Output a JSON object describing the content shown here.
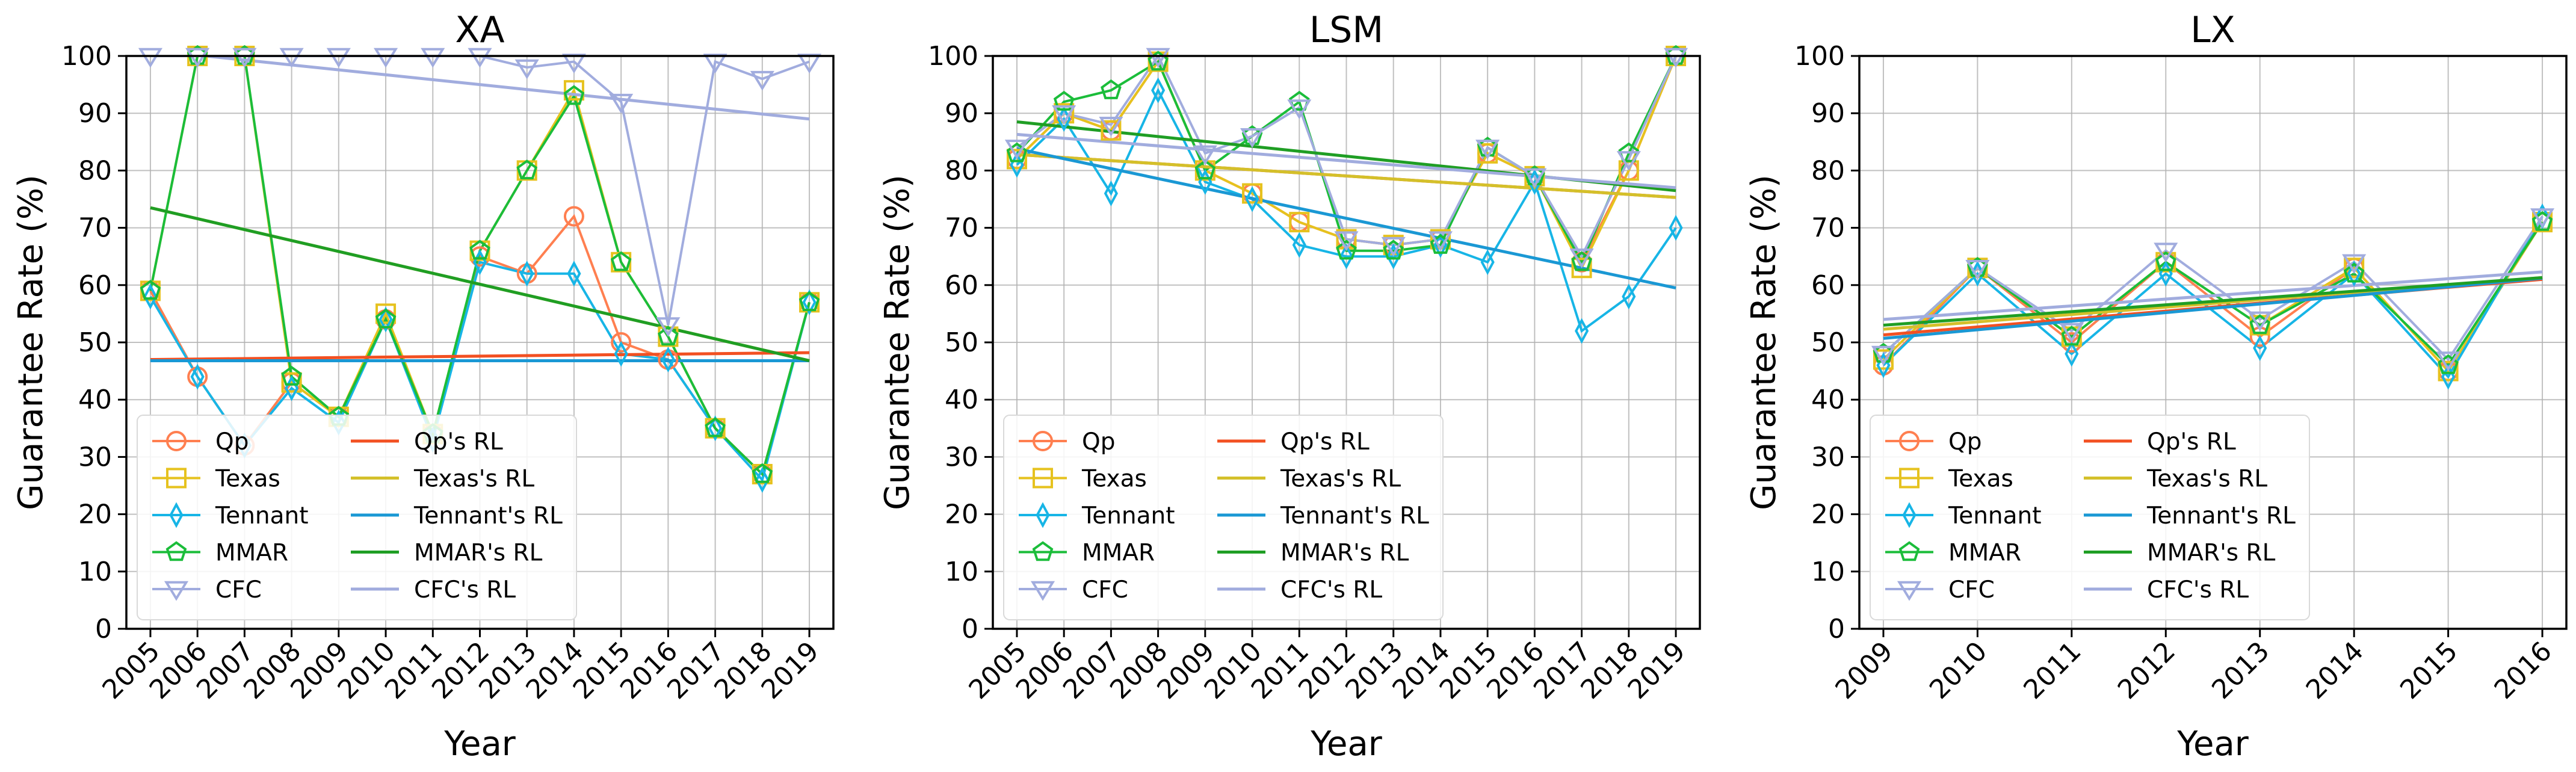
{
  "chart_data": [
    {
      "type": "line",
      "title": "XA",
      "xlabel": "Year",
      "ylabel": "Guarantee Rate (%)",
      "ylim": [
        0,
        100
      ],
      "yticks": [
        0,
        10,
        20,
        30,
        40,
        50,
        60,
        70,
        80,
        90,
        100
      ],
      "categories": [
        "2005",
        "2006",
        "2007",
        "2008",
        "2009",
        "2010",
        "2011",
        "2012",
        "2013",
        "2014",
        "2015",
        "2016",
        "2017",
        "2018",
        "2019"
      ],
      "series": [
        {
          "name": "Qp",
          "color": "#ff7f50",
          "marker": "circle",
          "values": [
            59,
            44,
            32,
            43,
            37,
            54,
            34,
            65,
            62,
            72,
            50,
            47,
            35,
            27,
            57
          ]
        },
        {
          "name": "Texas",
          "color": "#e6c21e",
          "marker": "square",
          "values": [
            59,
            100,
            100,
            43,
            37,
            55,
            34,
            66,
            80,
            94,
            64,
            51,
            35,
            27,
            57
          ]
        },
        {
          "name": "Tennant",
          "color": "#17b5e6",
          "marker": "thin_diamond",
          "values": [
            58,
            44,
            32,
            42,
            36,
            54,
            33,
            64,
            62,
            62,
            48,
            47,
            35,
            26,
            57
          ]
        },
        {
          "name": "MMAR",
          "color": "#1bbd3a",
          "marker": "pentagon",
          "values": [
            59,
            100,
            100,
            44,
            37,
            54,
            34,
            66,
            80,
            93,
            64,
            51,
            35,
            27,
            57
          ]
        },
        {
          "name": "CFC",
          "color": "#a1acde",
          "marker": "triangle_down",
          "values": [
            100,
            100,
            100,
            100,
            100,
            100,
            100,
            100,
            98,
            99,
            92,
            53,
            99,
            96,
            99
          ]
        }
      ],
      "regression_lines": [
        {
          "name": "Qp's RL",
          "color": "#f25022",
          "start": 47.0,
          "end": 48.2
        },
        {
          "name": "Texas's RL",
          "color": "#d4c02a",
          "start": 73.5,
          "end": 46.8
        },
        {
          "name": "Tennant's RL",
          "color": "#1a98d4",
          "start": 46.8,
          "end": 46.8
        },
        {
          "name": "MMAR's RL",
          "color": "#1f9e24",
          "start": 73.5,
          "end": 46.8
        },
        {
          "name": "CFC's RL",
          "color": "#a1acde",
          "start": 101.0,
          "end": 89.0
        }
      ],
      "legend_location": "lower-left"
    },
    {
      "type": "line",
      "title": "LSM",
      "xlabel": "Year",
      "ylabel": "Guarantee Rate (%)",
      "ylim": [
        0,
        100
      ],
      "yticks": [
        0,
        10,
        20,
        30,
        40,
        50,
        60,
        70,
        80,
        90,
        100
      ],
      "categories": [
        "2005",
        "2006",
        "2007",
        "2008",
        "2009",
        "2010",
        "2011",
        "2012",
        "2013",
        "2014",
        "2015",
        "2016",
        "2017",
        "2018",
        "2019"
      ],
      "series": [
        {
          "name": "Qp",
          "color": "#ff7f50",
          "marker": "circle",
          "values": [
            82,
            90,
            87,
            99,
            80,
            76,
            71,
            68,
            67,
            68,
            83,
            79,
            64,
            80,
            100
          ]
        },
        {
          "name": "Texas",
          "color": "#e6c21e",
          "marker": "square",
          "values": [
            82,
            90,
            87,
            99,
            80,
            76,
            71,
            68,
            67,
            68,
            83,
            79,
            63,
            80,
            100
          ]
        },
        {
          "name": "Tennant",
          "color": "#17b5e6",
          "marker": "thin_diamond",
          "values": [
            81,
            89,
            76,
            94,
            78,
            75,
            67,
            65,
            65,
            67,
            64,
            78,
            52,
            58,
            70
          ]
        },
        {
          "name": "MMAR",
          "color": "#1bbd3a",
          "marker": "pentagon",
          "values": [
            83,
            92,
            94,
            99,
            80,
            86,
            92,
            66,
            66,
            67,
            84,
            79,
            64,
            83,
            100
          ]
        },
        {
          "name": "CFC",
          "color": "#a1acde",
          "marker": "triangle_down",
          "values": [
            84,
            90,
            88,
            100,
            83,
            86,
            91,
            68,
            67,
            68,
            84,
            79,
            65,
            82,
            100
          ]
        }
      ],
      "regression_lines": [
        {
          "name": "Qp's RL",
          "color": "#f25022",
          "start": 82.8,
          "end": 75.3
        },
        {
          "name": "Texas's RL",
          "color": "#d4c02a",
          "start": 82.8,
          "end": 75.3
        },
        {
          "name": "Tennant's RL",
          "color": "#1a98d4",
          "start": 83.8,
          "end": 59.5
        },
        {
          "name": "MMAR's RL",
          "color": "#1f9e24",
          "start": 88.5,
          "end": 76.5
        },
        {
          "name": "CFC's RL",
          "color": "#a1acde",
          "start": 86.3,
          "end": 77.0
        }
      ],
      "legend_location": "lower-left"
    },
    {
      "type": "line",
      "title": "LX",
      "xlabel": "Year",
      "ylabel": "Guarantee Rate (%)",
      "ylim": [
        0,
        100
      ],
      "yticks": [
        0,
        10,
        20,
        30,
        40,
        50,
        60,
        70,
        80,
        90,
        100
      ],
      "categories": [
        "2009",
        "2010",
        "2011",
        "2012",
        "2013",
        "2014",
        "2015",
        "2016"
      ],
      "series": [
        {
          "name": "Qp",
          "color": "#ff7f50",
          "marker": "circle",
          "values": [
            46,
            63,
            50,
            64,
            51,
            63,
            45,
            71
          ]
        },
        {
          "name": "Texas",
          "color": "#e6c21e",
          "marker": "square",
          "values": [
            47,
            63,
            51,
            64,
            53,
            63,
            45,
            71
          ]
        },
        {
          "name": "Tennant",
          "color": "#17b5e6",
          "marker": "thin_diamond",
          "values": [
            46,
            62,
            48,
            62,
            49,
            62,
            44,
            72
          ]
        },
        {
          "name": "MMAR",
          "color": "#1bbd3a",
          "marker": "pentagon",
          "values": [
            48,
            63,
            51,
            64,
            53,
            62,
            46,
            71
          ]
        },
        {
          "name": "CFC",
          "color": "#a1acde",
          "marker": "triangle_down",
          "values": [
            48,
            63,
            52,
            66,
            54,
            64,
            47,
            72
          ]
        }
      ],
      "regression_lines": [
        {
          "name": "Qp's RL",
          "color": "#f25022",
          "start": 51.3,
          "end": 61.0
        },
        {
          "name": "Texas's RL",
          "color": "#d4c02a",
          "start": 52.3,
          "end": 61.3
        },
        {
          "name": "Tennant's RL",
          "color": "#1a98d4",
          "start": 50.7,
          "end": 61.2
        },
        {
          "name": "MMAR's RL",
          "color": "#1f9e24",
          "start": 53.0,
          "end": 61.3
        },
        {
          "name": "CFC's RL",
          "color": "#a1acde",
          "start": 54.0,
          "end": 62.3
        }
      ],
      "legend_location": "lower-left"
    }
  ]
}
